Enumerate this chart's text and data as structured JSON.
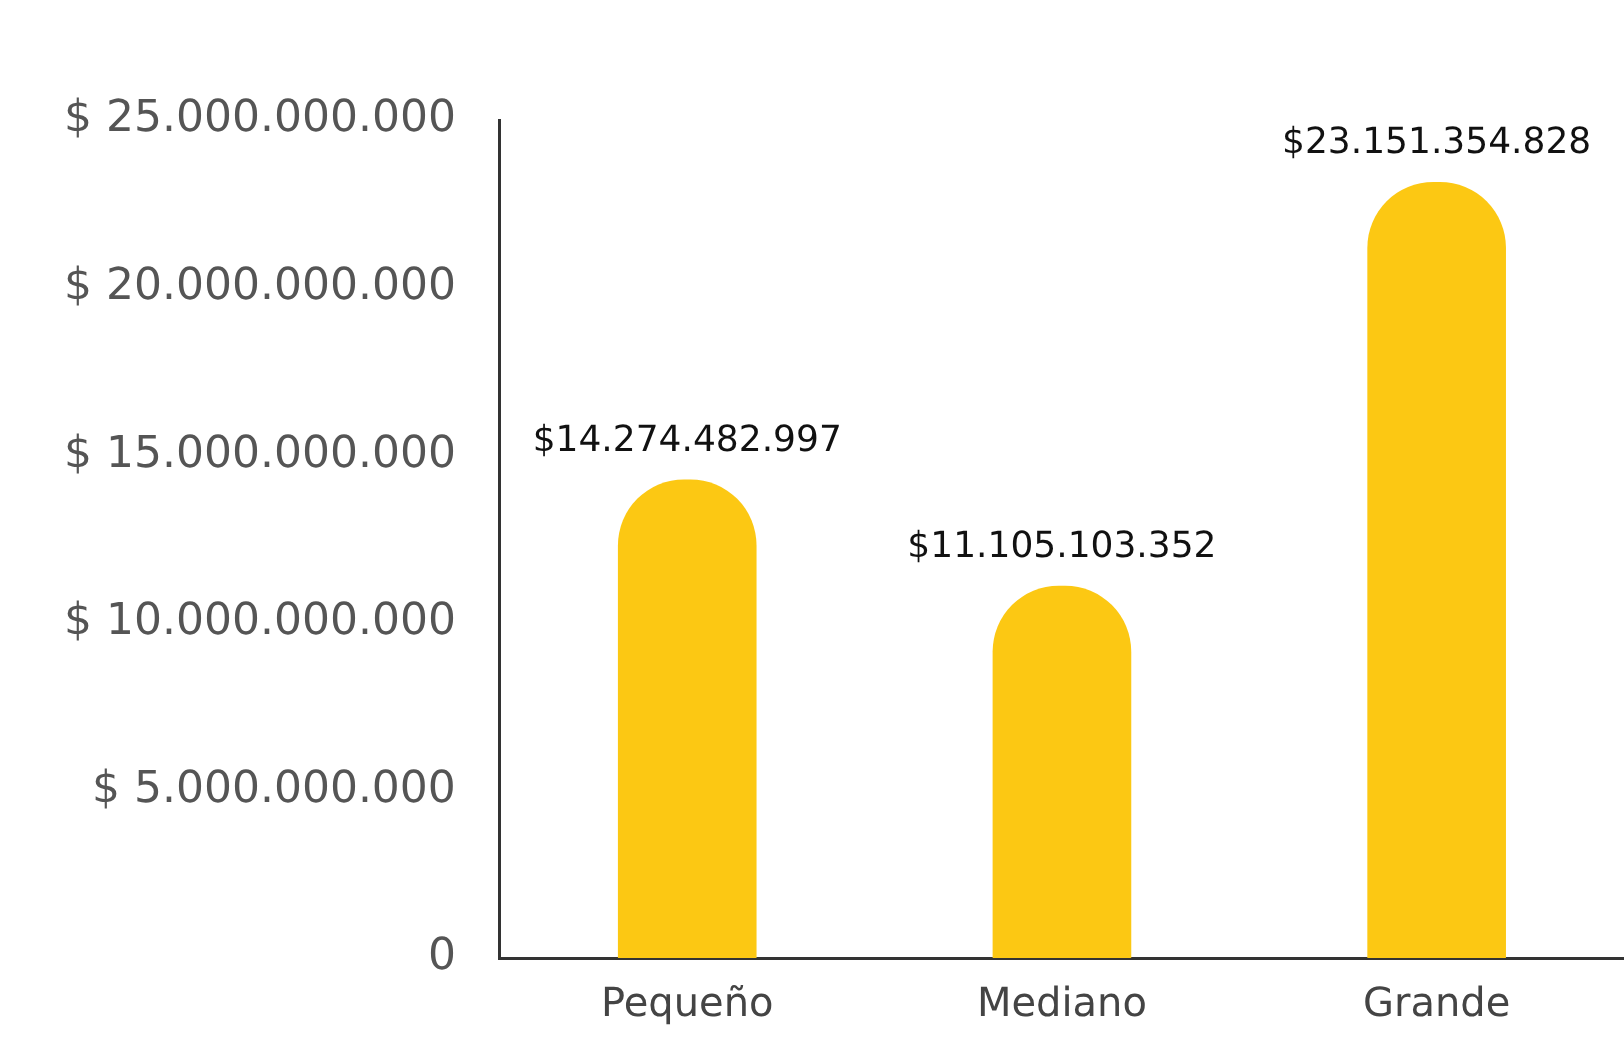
{
  "chart_data": {
    "type": "bar",
    "categories": [
      "Pequeño",
      "Mediano",
      "Grande"
    ],
    "values": [
      14274482997,
      11105103352,
      23151354828
    ],
    "value_labels": [
      "$14.274.482.997",
      "$11.105.103.352",
      "$23.151.354.828"
    ],
    "color": "#fcc813",
    "ylim": [
      0,
      25000000000
    ],
    "yticks": [
      0,
      {
        "value": 5000000000,
        "label": "$ 5.000.000.000"
      },
      {
        "value": 10000000000,
        "label": "$ 10.000.000.000"
      },
      {
        "value": 15000000000,
        "label": "$ 15.000.000.000"
      },
      {
        "value": 20000000000,
        "label": "$ 20.000.000.000"
      },
      {
        "value": 25000000000,
        "label": "$ 25.000.000.000"
      }
    ],
    "grid": false,
    "legend": false
  }
}
